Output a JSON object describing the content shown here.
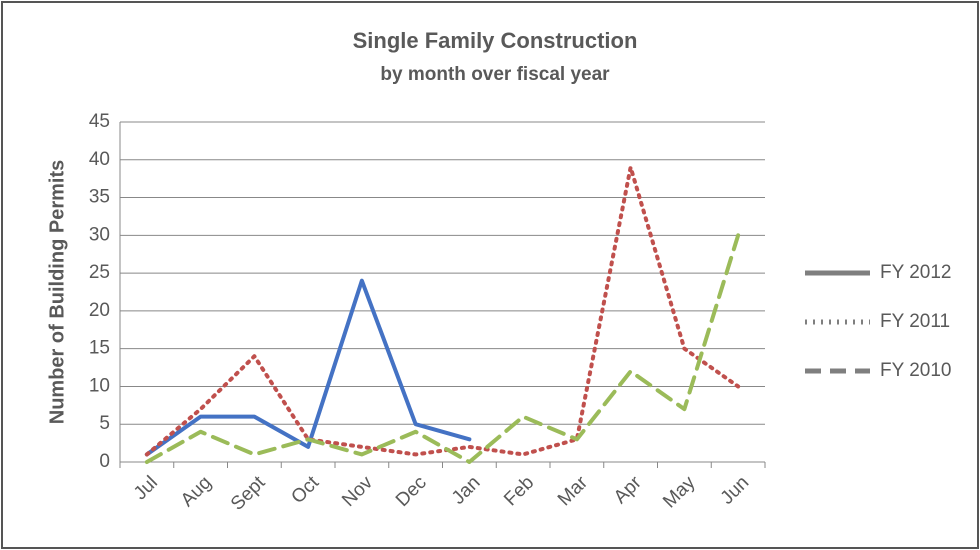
{
  "chart_data": {
    "type": "line",
    "title": "Single Family Construction",
    "subtitle": "by month over fiscal year",
    "y_axis_label": "Number of Building Permits",
    "categories": [
      "Jul",
      "Aug",
      "Sept",
      "Oct",
      "Nov",
      "Dec",
      "Jan",
      "Feb",
      "Mar",
      "Apr",
      "May",
      "Jun"
    ],
    "series": [
      {
        "name": "FY 2012",
        "color": "#4472c4",
        "dash": "solid",
        "values": [
          1,
          6,
          6,
          2,
          24,
          5,
          3,
          null,
          null,
          null,
          null,
          null
        ]
      },
      {
        "name": "FY 2011",
        "color": "#c0504d",
        "dash": "dotted",
        "values": [
          1,
          7,
          14,
          3,
          2,
          1,
          2,
          1,
          3,
          39,
          15,
          10
        ]
      },
      {
        "name": "FY 2010",
        "color": "#9bbb59",
        "dash": "dashed",
        "values": [
          0,
          4,
          1,
          3,
          1,
          4,
          0,
          6,
          3,
          12,
          7,
          30
        ]
      }
    ],
    "legend_color": "#7f7f7f",
    "legend_position": "right",
    "ylim": [
      0,
      45
    ],
    "yticks": [
      0,
      5,
      10,
      15,
      20,
      25,
      30,
      35,
      40,
      45
    ],
    "grid": true
  }
}
